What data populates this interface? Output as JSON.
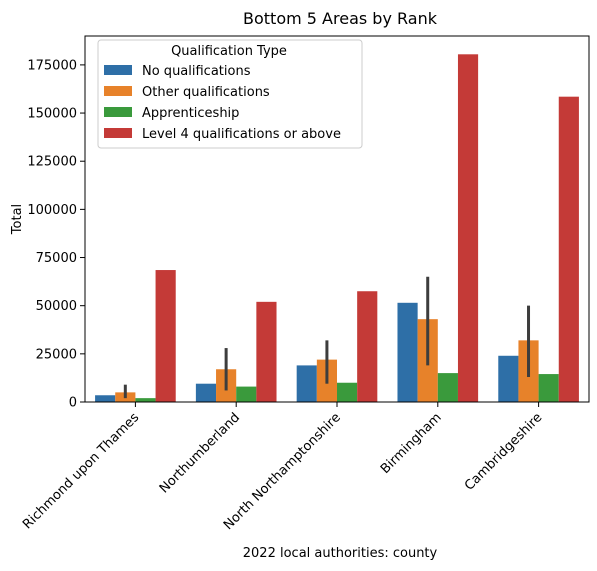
{
  "chart_data": {
    "type": "bar",
    "title": "Bottom 5 Areas by Rank",
    "xlabel": "2022 local authorities: county",
    "ylabel": "Total",
    "categories": [
      "Richmond upon Thames",
      "Northumberland",
      "North Northamptonshire",
      "Birmingham",
      "Cambridgeshire"
    ],
    "ylim": [
      0,
      190000
    ],
    "yticks": [
      0,
      25000,
      50000,
      75000,
      100000,
      125000,
      150000,
      175000
    ],
    "legend": {
      "title": "Qualification Type",
      "position": "top-left"
    },
    "series": [
      {
        "name": "No qualifications",
        "color": "#2e6fa7",
        "values": [
          3500,
          9500,
          19000,
          51500,
          24000
        ],
        "error": [
          null,
          null,
          null,
          null,
          null
        ]
      },
      {
        "name": "Other qualifications",
        "color": "#e7822a",
        "values": [
          5000,
          17000,
          22000,
          43000,
          32000
        ],
        "error": [
          [
            2000,
            9000
          ],
          [
            6000,
            28000
          ],
          [
            9500,
            32000
          ],
          [
            19000,
            65000
          ],
          [
            13000,
            50000
          ]
        ]
      },
      {
        "name": "Apprenticeship",
        "color": "#3a9a3c",
        "values": [
          2000,
          8000,
          10000,
          15000,
          14500
        ],
        "error": [
          null,
          null,
          null,
          null,
          null
        ]
      },
      {
        "name": "Level 4 qualifications or above",
        "color": "#c43a37",
        "values": [
          68500,
          52000,
          57500,
          180500,
          158500
        ],
        "error": [
          null,
          null,
          null,
          null,
          null
        ]
      }
    ]
  }
}
